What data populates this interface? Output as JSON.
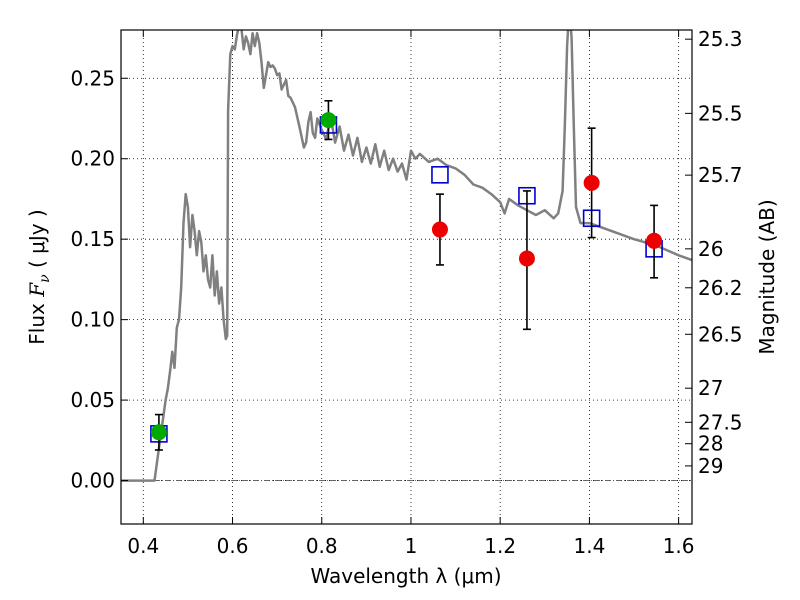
{
  "chart_data": {
    "type": "scatter",
    "xlabel": "Wavelength  λ (μm)",
    "ylabel": "Flux  F_ν  ( μJy )",
    "ylabel_parts": {
      "pre": "Flux ",
      "math": "F",
      "sub": "ν",
      "post": "  ( μJy )"
    },
    "ylabel_right": "Magnitude (AB)",
    "xlim": [
      0.35,
      1.63
    ],
    "ylim": [
      -0.027,
      0.28
    ],
    "grid": true,
    "x_ticks": [
      0.4,
      0.6,
      0.8,
      1.0,
      1.2,
      1.4,
      1.6
    ],
    "x_tick_labels": [
      "0.4",
      "0.6",
      "0.8",
      "1",
      "1.2",
      "1.4",
      "1.6"
    ],
    "y_ticks": [
      0.0,
      0.05,
      0.1,
      0.15,
      0.2,
      0.25
    ],
    "y_tick_labels": [
      "0.00",
      "0.05",
      "0.10",
      "0.15",
      "0.20",
      "0.25"
    ],
    "right_ticks": [
      {
        "label": "25.3",
        "flux": 0.2743
      },
      {
        "label": "25.5",
        "flux": 0.2282
      },
      {
        "label": "25.7",
        "flux": 0.1898
      },
      {
        "label": "26",
        "flux": 0.144
      },
      {
        "label": "26.2",
        "flux": 0.1198
      },
      {
        "label": "26.5",
        "flux": 0.0909
      },
      {
        "label": "27",
        "flux": 0.0574
      },
      {
        "label": "27.5",
        "flux": 0.0362
      },
      {
        "label": "28",
        "flux": 0.0229
      },
      {
        "label": "29",
        "flux": 0.0091
      }
    ],
    "model_sed": {
      "color": "#808080",
      "x": [
        0.35,
        0.41,
        0.425,
        0.43,
        0.435,
        0.44,
        0.445,
        0.45,
        0.455,
        0.46,
        0.465,
        0.47,
        0.475,
        0.48,
        0.485,
        0.49,
        0.495,
        0.5,
        0.505,
        0.51,
        0.515,
        0.52,
        0.525,
        0.53,
        0.535,
        0.54,
        0.545,
        0.55,
        0.555,
        0.56,
        0.565,
        0.57,
        0.575,
        0.58,
        0.585,
        0.588,
        0.59,
        0.595,
        0.6,
        0.605,
        0.61,
        0.615,
        0.62,
        0.625,
        0.63,
        0.635,
        0.64,
        0.645,
        0.65,
        0.655,
        0.66,
        0.665,
        0.67,
        0.675,
        0.68,
        0.685,
        0.69,
        0.695,
        0.7,
        0.705,
        0.71,
        0.715,
        0.72,
        0.725,
        0.73,
        0.74,
        0.75,
        0.76,
        0.765,
        0.77,
        0.775,
        0.78,
        0.785,
        0.79,
        0.8,
        0.81,
        0.82,
        0.83,
        0.84,
        0.85,
        0.86,
        0.87,
        0.88,
        0.89,
        0.9,
        0.91,
        0.92,
        0.93,
        0.94,
        0.95,
        0.96,
        0.97,
        0.98,
        0.99,
        1.0,
        1.01,
        1.02,
        1.04,
        1.06,
        1.08,
        1.1,
        1.12,
        1.14,
        1.16,
        1.18,
        1.2,
        1.21,
        1.22,
        1.23,
        1.24,
        1.26,
        1.28,
        1.3,
        1.32,
        1.33,
        1.34,
        1.345,
        1.35,
        1.355,
        1.36,
        1.365,
        1.37,
        1.38,
        1.4,
        1.45,
        1.5,
        1.55,
        1.6,
        1.63
      ],
      "y": [
        0.0,
        0.0,
        0.0,
        0.01,
        0.02,
        0.03,
        0.04,
        0.05,
        0.057,
        0.068,
        0.08,
        0.07,
        0.095,
        0.1,
        0.12,
        0.16,
        0.178,
        0.17,
        0.145,
        0.165,
        0.155,
        0.14,
        0.155,
        0.148,
        0.13,
        0.14,
        0.125,
        0.12,
        0.14,
        0.115,
        0.13,
        0.11,
        0.12,
        0.1,
        0.088,
        0.09,
        0.23,
        0.265,
        0.27,
        0.268,
        0.277,
        0.283,
        0.281,
        0.268,
        0.276,
        0.272,
        0.265,
        0.278,
        0.27,
        0.278,
        0.272,
        0.26,
        0.244,
        0.252,
        0.26,
        0.257,
        0.258,
        0.256,
        0.252,
        0.253,
        0.243,
        0.246,
        0.249,
        0.239,
        0.238,
        0.232,
        0.22,
        0.207,
        0.21,
        0.223,
        0.229,
        0.216,
        0.213,
        0.225,
        0.218,
        0.212,
        0.226,
        0.21,
        0.22,
        0.205,
        0.215,
        0.202,
        0.213,
        0.198,
        0.207,
        0.197,
        0.209,
        0.195,
        0.205,
        0.193,
        0.2,
        0.192,
        0.197,
        0.187,
        0.205,
        0.2,
        0.203,
        0.198,
        0.2,
        0.196,
        0.194,
        0.19,
        0.184,
        0.182,
        0.178,
        0.173,
        0.166,
        0.175,
        0.173,
        0.171,
        0.168,
        0.165,
        0.168,
        0.163,
        0.166,
        0.18,
        0.222,
        0.27,
        0.294,
        0.275,
        0.22,
        0.17,
        0.16,
        0.16,
        0.155,
        0.15,
        0.146,
        0.14,
        0.137
      ]
    },
    "model_photometry": {
      "color": "#0000cc",
      "marker": "open-square",
      "x": [
        0.435,
        0.815,
        1.065,
        1.26,
        1.405,
        1.545
      ],
      "y": [
        0.029,
        0.221,
        0.19,
        0.177,
        0.163,
        0.144
      ]
    },
    "detections": {
      "color": "#00aa00",
      "x": [
        0.435,
        0.815
      ],
      "y": [
        0.03,
        0.224
      ],
      "err": [
        0.011,
        0.012
      ]
    },
    "upper_points": {
      "color": "#ee0000",
      "x": [
        1.065,
        1.26,
        1.405,
        1.545
      ],
      "y": [
        0.156,
        0.138,
        0.185,
        0.149
      ],
      "err_low": [
        0.022,
        0.044,
        0.034,
        0.023
      ],
      "err_high": [
        0.022,
        0.042,
        0.034,
        0.022
      ]
    }
  }
}
